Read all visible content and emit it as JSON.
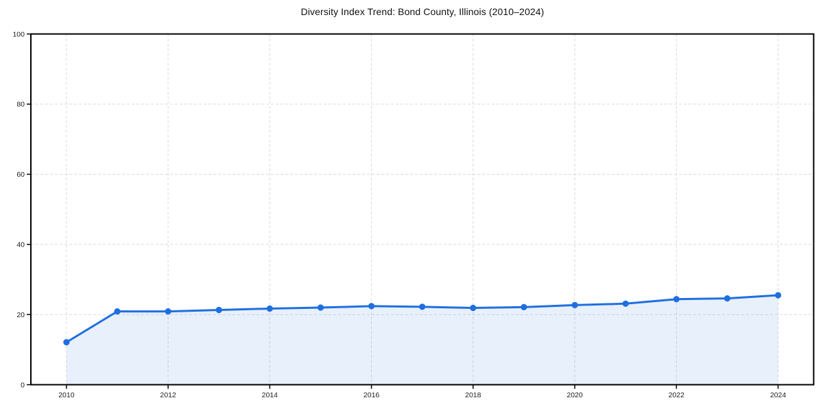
{
  "chart_data": {
    "type": "line",
    "title": "Diversity Index Trend: Bond County, Illinois (2010–2024)",
    "x": [
      2010,
      2011,
      2012,
      2013,
      2014,
      2015,
      2016,
      2017,
      2018,
      2019,
      2020,
      2021,
      2022,
      2023,
      2024
    ],
    "series": [
      {
        "name": "Diversity Index",
        "values": [
          12.1,
          20.9,
          20.9,
          21.3,
          21.7,
          22.0,
          22.4,
          22.2,
          21.9,
          22.1,
          22.7,
          23.1,
          24.4,
          24.6,
          25.5
        ]
      }
    ],
    "xlabel": "",
    "ylabel": "",
    "xlim": [
      2009.3,
      2024.7
    ],
    "ylim": [
      0,
      100
    ],
    "xticks": [
      2010,
      2012,
      2014,
      2016,
      2018,
      2020,
      2022,
      2024
    ],
    "yticks": [
      0,
      20,
      40,
      60,
      80,
      100
    ],
    "grid": "on",
    "grid_style": "dashed",
    "legend_position": "none",
    "marker": "circle",
    "colors": {
      "line": "#1f6fe0",
      "marker": "#1f6fe0",
      "area_fill": "rgba(31,111,224,0.10)",
      "grid": "#d9d9d9",
      "spine": "#000000",
      "text": "#1a1a1a",
      "background": "#ffffff"
    }
  }
}
